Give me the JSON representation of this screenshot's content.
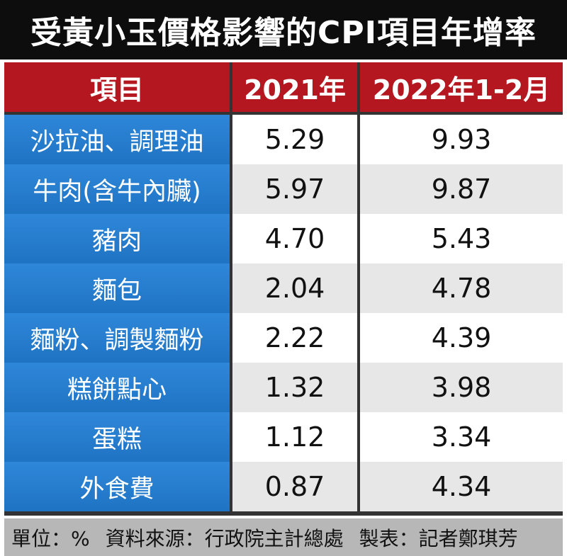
{
  "chart_data": {
    "type": "table",
    "title": "受黃小玉價格影響的CPI項目年增率",
    "columns": [
      "項目",
      "2021年",
      "2022年1-2月"
    ],
    "rows": [
      [
        "沙拉油、調理油",
        "5.29",
        "9.93"
      ],
      [
        "牛肉(含牛內臟)",
        "5.97",
        "9.87"
      ],
      [
        "豬肉",
        "4.70",
        "5.43"
      ],
      [
        "麵包",
        "2.04",
        "4.78"
      ],
      [
        "麵粉、調製麵粉",
        "2.22",
        "4.39"
      ],
      [
        "糕餅點心",
        "1.32",
        "3.98"
      ],
      [
        "蛋糕",
        "1.12",
        "3.34"
      ],
      [
        "外食費",
        "0.87",
        "4.34"
      ]
    ],
    "footer": {
      "unit": "單位：%",
      "source": "資料來源：行政院主計總處",
      "maker": "製表：記者鄭琪芳"
    }
  },
  "colors": {
    "title_bg": "#0d0d0d",
    "header_bg": "#b4171f",
    "item_bg": "#2f87d9",
    "row_alt_bg": "#e7e7e7",
    "footer_bg": "#b7b7b7"
  }
}
